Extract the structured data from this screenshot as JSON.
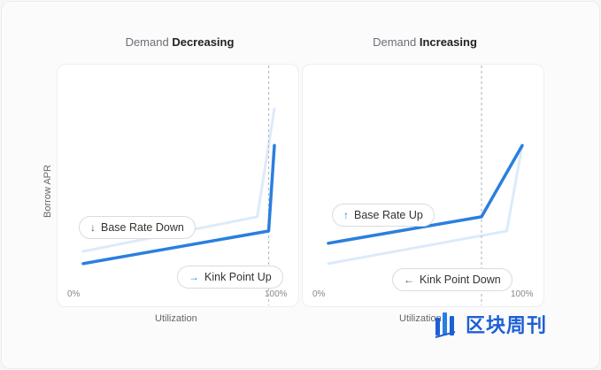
{
  "chart_data": [
    {
      "type": "line",
      "title_prefix": "Demand",
      "title_emph": "Decreasing",
      "xlabel": "Utilization",
      "ylabel": "Borrow APR",
      "x_ticks": [
        "0%",
        "100%"
      ],
      "xlim": [
        0,
        100
      ],
      "ylim": [
        0,
        100
      ],
      "series": [
        {
          "role": "before",
          "x": [
            0,
            91,
            100
          ],
          "y": [
            20,
            37,
            90
          ]
        },
        {
          "role": "after",
          "x": [
            0,
            97,
            100
          ],
          "y": [
            14,
            30,
            72
          ]
        }
      ],
      "kink_line_x": 97,
      "callouts": [
        {
          "arrow": "↓",
          "text": "Base Rate Down"
        },
        {
          "arrow": "→",
          "text": "Kink Point Up"
        }
      ]
    },
    {
      "type": "line",
      "title_prefix": "Demand",
      "title_emph": "Increasing",
      "xlabel": "Utilization",
      "ylabel": "",
      "x_ticks": [
        "0%",
        "100%"
      ],
      "xlim": [
        0,
        100
      ],
      "ylim": [
        0,
        100
      ],
      "series": [
        {
          "role": "before",
          "x": [
            0,
            92,
            100
          ],
          "y": [
            14,
            30,
            72
          ]
        },
        {
          "role": "after",
          "x": [
            0,
            79,
            100
          ],
          "y": [
            24,
            37,
            72
          ]
        }
      ],
      "kink_line_x": 79,
      "callouts": [
        {
          "arrow": "↑",
          "text": "Base Rate Up"
        },
        {
          "arrow": "←",
          "text": "Kink Point Down"
        }
      ]
    }
  ],
  "colors": {
    "primary_line": "#2a7fde",
    "faded_line": "#dcebfa",
    "dashed_line": "#b8bcc4",
    "accent_arrow": "#2a87e0"
  },
  "watermark": {
    "text": "区块周刊",
    "icon": "chart-bars-logo-icon"
  }
}
